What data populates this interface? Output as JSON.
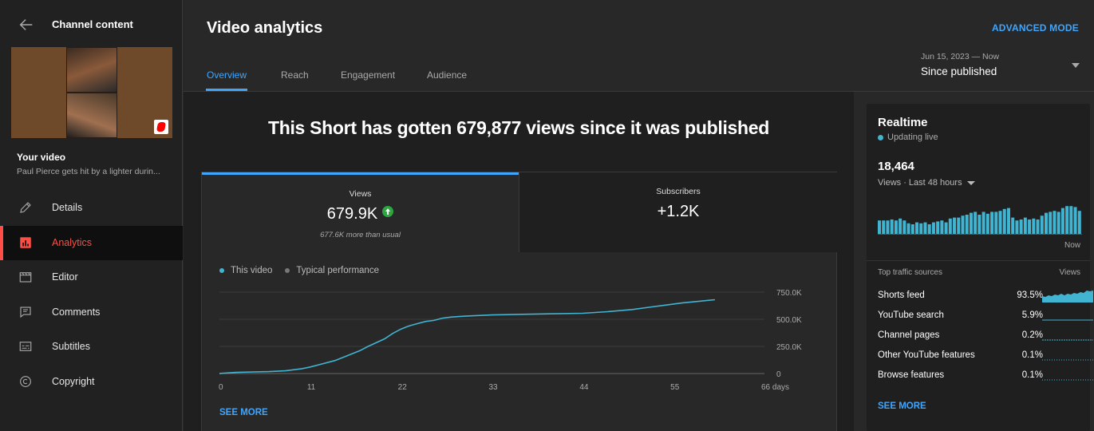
{
  "sidebar": {
    "title": "Channel content",
    "your_video_label": "Your video",
    "video_title": "Paul Pierce gets hit by a lighter durin...",
    "nav": [
      {
        "label": "Details",
        "icon": "pencil-icon",
        "active": false
      },
      {
        "label": "Analytics",
        "icon": "analytics-icon",
        "active": true
      },
      {
        "label": "Editor",
        "icon": "clapperboard-icon",
        "active": false
      },
      {
        "label": "Comments",
        "icon": "comment-icon",
        "active": false
      },
      {
        "label": "Subtitles",
        "icon": "subtitles-icon",
        "active": false
      },
      {
        "label": "Copyright",
        "icon": "copyright-icon",
        "active": false
      }
    ]
  },
  "header": {
    "title": "Video analytics",
    "advanced_mode": "ADVANCED MODE",
    "tabs": [
      "Overview",
      "Reach",
      "Engagement",
      "Audience"
    ],
    "active_tab": "Overview",
    "date_range": "Jun 15, 2023 — Now",
    "date_value": "Since published"
  },
  "overview": {
    "headline": "This Short has gotten 679,877 views since it was published",
    "metrics": {
      "views_label": "Views",
      "views_value": "679.9K",
      "views_note": "677.6K more than usual",
      "subs_label": "Subscribers",
      "subs_value": "+1.2K"
    },
    "legend": {
      "this_video": "This video",
      "typical": "Typical performance"
    },
    "see_more": "SEE MORE",
    "colors": {
      "accent": "#3ea6ff",
      "line": "#41b4d2",
      "typical": "#777777",
      "up": "#2ba640"
    }
  },
  "chart_data": {
    "type": "line",
    "title": "",
    "xlabel": "",
    "ylabel": "",
    "x_ticks": [
      "0",
      "11",
      "22",
      "33",
      "44",
      "55",
      "66 days"
    ],
    "y_ticks": [
      "750.0K",
      "500.0K",
      "250.0K",
      "0"
    ],
    "xlim": [
      0,
      66
    ],
    "ylim": [
      0,
      750000
    ],
    "grid": true,
    "series": [
      {
        "name": "This video",
        "x": [
          0,
          2,
          4,
          6,
          8,
          10,
          11,
          12,
          14,
          16,
          17,
          18,
          20,
          21,
          22,
          23,
          24,
          25,
          26,
          27,
          28,
          29,
          30,
          33,
          36,
          40,
          44,
          47,
          50,
          52,
          54,
          56,
          58,
          60
        ],
        "y": [
          1000,
          10000,
          15000,
          18000,
          25000,
          45000,
          60000,
          80000,
          120000,
          180000,
          210000,
          250000,
          320000,
          370000,
          410000,
          440000,
          460000,
          480000,
          490000,
          510000,
          520000,
          525000,
          530000,
          540000,
          545000,
          550000,
          555000,
          570000,
          590000,
          610000,
          630000,
          650000,
          665000,
          680000
        ]
      }
    ]
  },
  "realtime": {
    "title": "Realtime",
    "status": "Updating live",
    "count": "18,464",
    "period": "Views · Last 48 hours",
    "now_label": "Now",
    "bars": [
      14,
      14,
      14,
      15,
      14,
      16,
      14,
      11,
      10,
      12,
      11,
      12,
      10,
      12,
      13,
      14,
      12,
      16,
      17,
      17,
      19,
      20,
      22,
      23,
      20,
      23,
      21,
      23,
      23,
      24,
      26,
      27,
      17,
      14,
      15,
      17,
      15,
      16,
      15,
      19,
      22,
      23,
      24,
      23,
      27,
      29,
      29,
      28,
      24
    ],
    "traffic_header": "Top traffic sources",
    "views_header": "Views",
    "traffic": [
      {
        "name": "Shorts feed",
        "pct": "93.5%"
      },
      {
        "name": "YouTube search",
        "pct": "5.9%"
      },
      {
        "name": "Channel pages",
        "pct": "0.2%"
      },
      {
        "name": "Other YouTube features",
        "pct": "0.1%"
      },
      {
        "name": "Browse features",
        "pct": "0.1%"
      }
    ],
    "see_more": "SEE MORE"
  }
}
